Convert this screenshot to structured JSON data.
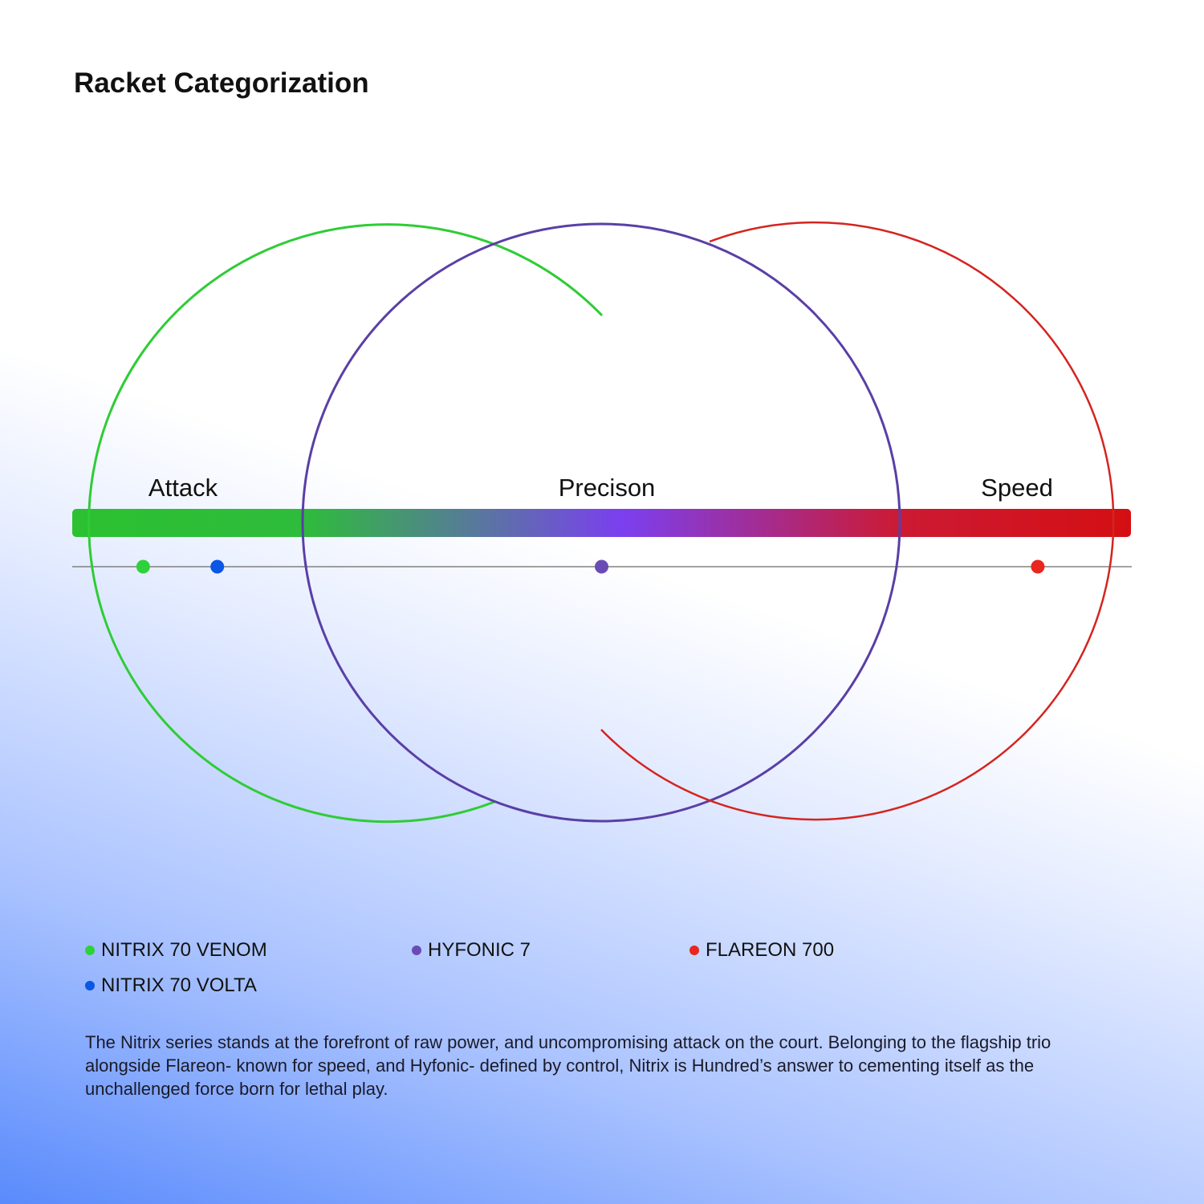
{
  "title": "Racket Categorization",
  "scale": {
    "labels": {
      "attack": "Attack",
      "precision": "Precison",
      "speed": "Speed"
    },
    "gradient_colors": [
      "#2bc131",
      "#7b3ff0",
      "#d40f12"
    ]
  },
  "circles": {
    "attack_color": "#2fcc35",
    "precision_color": "#5a3fa6",
    "speed_color": "#d42420"
  },
  "rackets": [
    {
      "name": "NITRIX 70 VENOM",
      "color": "#2fd13a",
      "scale_position": 0.067
    },
    {
      "name": "NITRIX 70 VOLTA",
      "color": "#0a56e6",
      "scale_position": 0.137
    },
    {
      "name": "HYFONIC 7",
      "color": "#6a4bb5",
      "scale_position": 0.5
    },
    {
      "name": "FLAREON 700",
      "color": "#e8271e",
      "scale_position": 0.912
    }
  ],
  "description": "The Nitrix series stands at the forefront of raw power, and uncompromising attack on the court. Belonging to the flagship trio alongside Flareon- known for speed, and Hyfonic- defined by control, Nitrix is Hundred’s answer to cementing itself as the unchallenged force born for lethal play."
}
